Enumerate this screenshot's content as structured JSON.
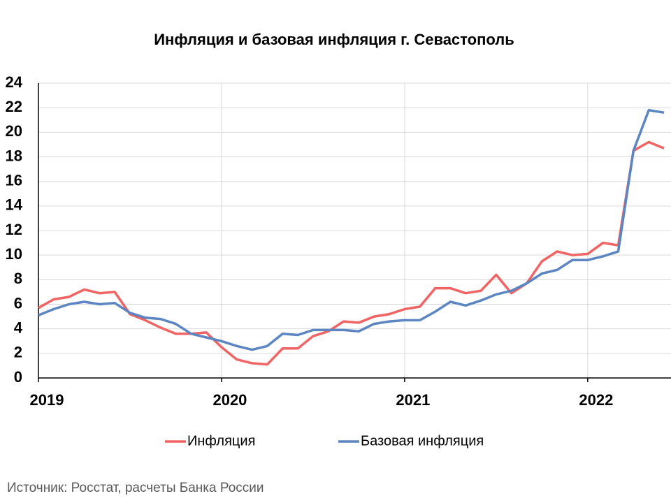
{
  "chart_data": {
    "type": "line",
    "title": "Инфляция и базовая инфляция г. Севастополь",
    "source": "Источник: Росстат, расчеты Банка России",
    "categories": [
      "2019",
      null,
      null,
      null,
      null,
      null,
      null,
      null,
      null,
      null,
      null,
      null,
      "2020",
      null,
      null,
      null,
      null,
      null,
      null,
      null,
      null,
      null,
      null,
      null,
      "2021",
      null,
      null,
      null,
      null,
      null,
      null,
      null,
      null,
      null,
      null,
      null,
      "2022",
      null,
      null,
      null,
      null,
      null
    ],
    "series": [
      {
        "name": "Инфляция",
        "color": "#f06464",
        "values": [
          5.7,
          6.4,
          6.6,
          7.2,
          6.9,
          7.0,
          5.2,
          4.7,
          4.1,
          3.6,
          3.6,
          3.7,
          2.5,
          1.5,
          1.2,
          1.1,
          2.4,
          2.4,
          3.4,
          3.8,
          4.6,
          4.5,
          5.0,
          5.2,
          5.6,
          5.8,
          7.3,
          7.3,
          6.9,
          7.1,
          8.4,
          6.9,
          7.7,
          9.5,
          10.3,
          10.0,
          10.1,
          11.0,
          10.8,
          18.5,
          19.2,
          18.7
        ]
      },
      {
        "name": "Базовая инфляция",
        "color": "#5b86c2",
        "values": [
          5.1,
          5.6,
          6.0,
          6.2,
          6.0,
          6.1,
          5.3,
          4.9,
          4.8,
          4.4,
          3.6,
          3.3,
          3.0,
          2.6,
          2.3,
          2.6,
          3.6,
          3.5,
          3.9,
          3.9,
          3.9,
          3.8,
          4.4,
          4.6,
          4.7,
          4.7,
          5.4,
          6.2,
          5.9,
          6.3,
          6.8,
          7.1,
          7.7,
          8.5,
          8.8,
          9.6,
          9.6,
          9.9,
          10.3,
          18.5,
          21.8,
          21.6
        ]
      }
    ],
    "ylim": [
      0,
      24
    ],
    "yticks": [
      0,
      2,
      4,
      6,
      8,
      10,
      12,
      14,
      16,
      18,
      20,
      22,
      24
    ],
    "grid": true,
    "legend": "bottom"
  }
}
